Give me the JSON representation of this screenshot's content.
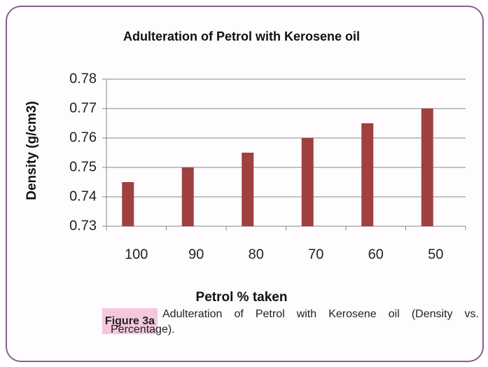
{
  "chart_data": {
    "type": "bar",
    "title": "Adulteration of Petrol with Kerosene oil",
    "x_label": "Petrol % taken",
    "y_label": "Density (g/cm3)",
    "categories": [
      "100",
      "90",
      "80",
      "70",
      "60",
      "50"
    ],
    "values": [
      0.745,
      0.75,
      0.755,
      0.76,
      0.765,
      0.77
    ],
    "color": "#a0403f",
    "ylim": [
      0.73,
      0.78
    ],
    "yticks": [
      0.73,
      0.74,
      0.75,
      0.76,
      0.77,
      0.78
    ],
    "grid": true
  },
  "figure": {
    "label": "Figure 3a",
    "caption": "Adulteration of Petrol with Kerosene oil (Density vs. Percentage)."
  }
}
